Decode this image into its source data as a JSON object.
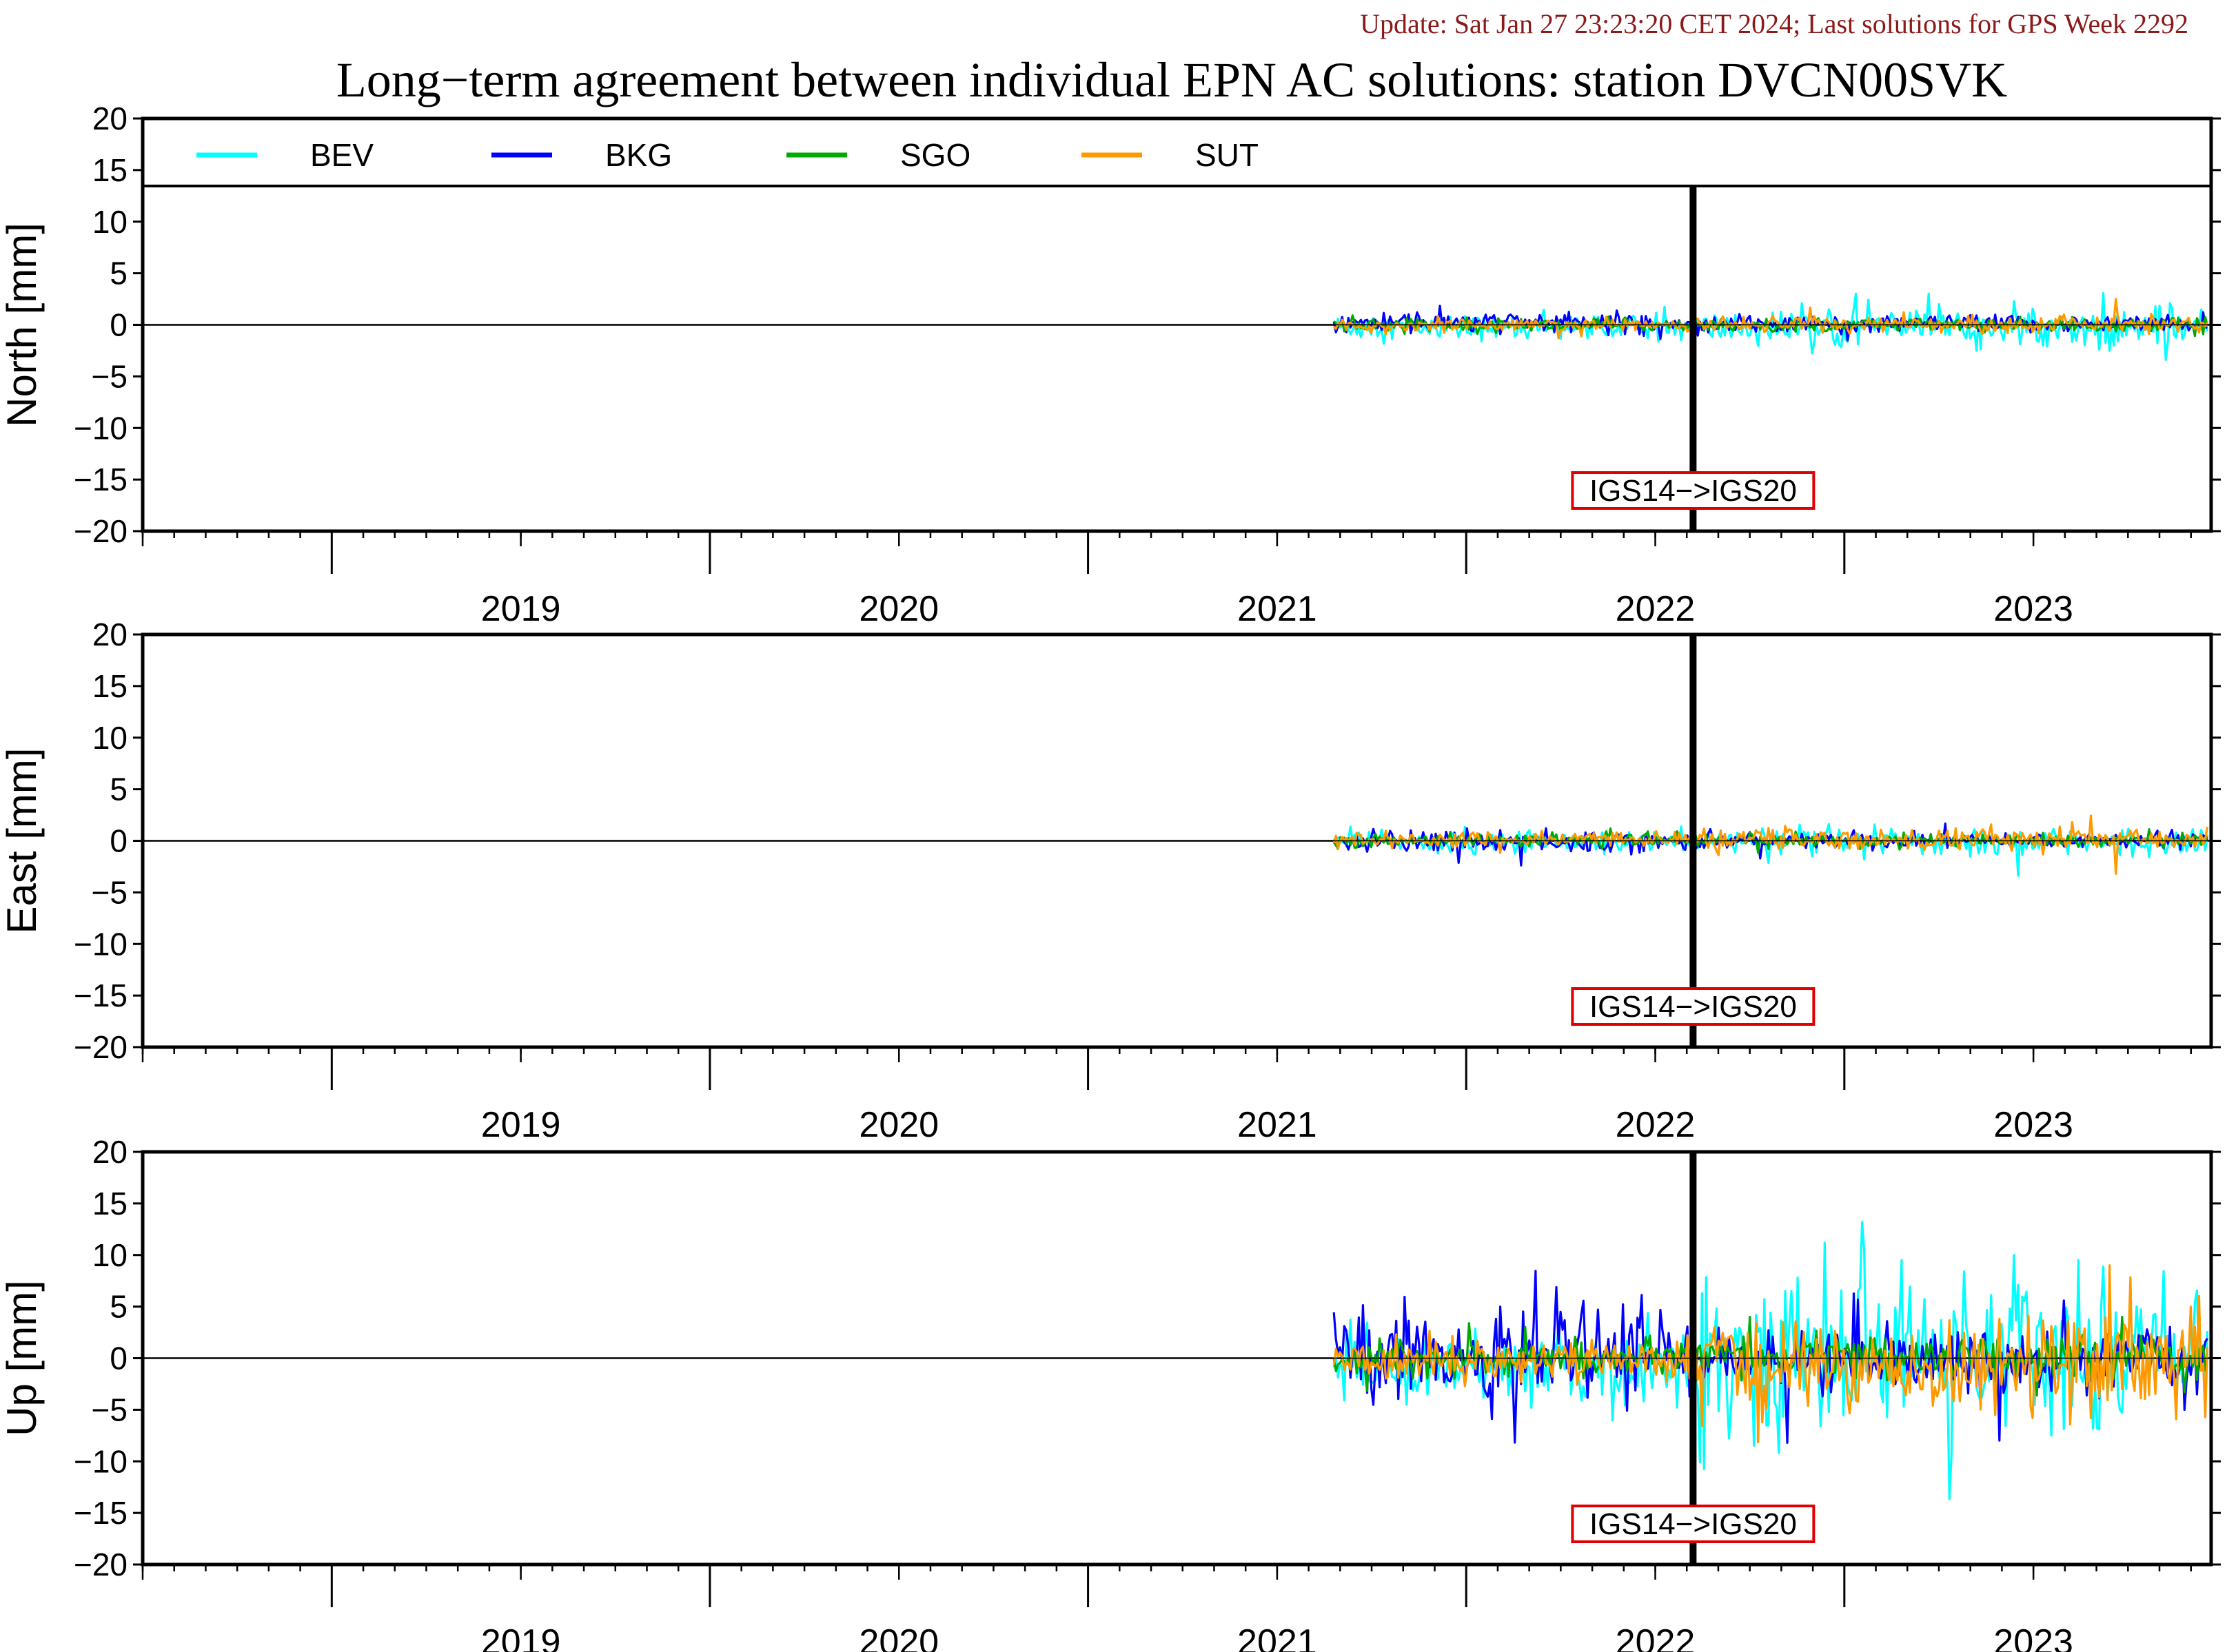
{
  "header": {
    "update": "Update: Sat Jan 27 23:23:20 CET 2024; Last solutions for GPS Week 2292",
    "title": "Long−term agreement between individual EPN AC solutions: station DVCN00SVK"
  },
  "chart_data": {
    "type": "line",
    "x_unit": "year",
    "xlim": [
      2018.5,
      2023.97
    ],
    "year_ticks": [
      "2019",
      "2020",
      "2021",
      "2022",
      "2023"
    ],
    "ylim": [
      -20,
      20
    ],
    "y_ticks": [
      "20",
      "15",
      "10",
      "5",
      "0",
      "−05",
      "−10",
      "−15",
      "−20"
    ],
    "y_tick_values": [
      20,
      15,
      10,
      5,
      0,
      -5,
      -10,
      -15,
      -20
    ],
    "y_tick_text": [
      "20",
      "15",
      "10",
      "5",
      "0",
      "−5",
      "−10",
      "−15",
      "−20"
    ],
    "event": {
      "label": "IGS14−>IGS20",
      "x": 2022.6
    },
    "legend": [
      {
        "name": "BEV",
        "color": "#00ffff"
      },
      {
        "name": "BKG",
        "color": "#0000ff"
      },
      {
        "name": "SGO",
        "color": "#00aa00"
      },
      {
        "name": "SUT",
        "color": "#ff9900"
      }
    ],
    "data_start": 2021.65,
    "data_end": 2023.96,
    "panels": [
      {
        "ylabel": "North [mm]",
        "series": {
          "BEV": {
            "pre_spread": 0.6,
            "pre_bias": -0.5,
            "post_spread": 0.8,
            "post_bias": -0.6,
            "peaks": [
              [
                2023.25,
                2.0
              ],
              [
                2023.85,
                -3.4
              ],
              [
                2023.35,
                -2.5
              ]
            ]
          },
          "BKG": {
            "pre_spread": 0.5,
            "pre_bias": 0.4,
            "post_spread": 0.4,
            "post_bias": 0.2,
            "peaks": [
              [
                2021.87,
                1.2
              ]
            ]
          },
          "SGO": {
            "pre_spread": 0.3,
            "pre_bias": 0.0,
            "post_spread": 0.3,
            "post_bias": 0.0,
            "peaks": []
          },
          "SUT": {
            "pre_spread": 0.3,
            "pre_bias": 0.0,
            "post_spread": 0.35,
            "post_bias": 0.1,
            "peaks": [
              [
                2023.72,
                2.5
              ]
            ]
          }
        }
      },
      {
        "ylabel": "East [mm]",
        "series": {
          "BEV": {
            "pre_spread": 0.5,
            "pre_bias": -0.2,
            "post_spread": 0.6,
            "post_bias": -0.2,
            "peaks": [
              [
                2023.05,
                -1.8
              ]
            ]
          },
          "BKG": {
            "pre_spread": 0.5,
            "pre_bias": -0.1,
            "post_spread": 0.4,
            "post_bias": 0.0,
            "peaks": []
          },
          "SGO": {
            "pre_spread": 0.3,
            "pre_bias": 0.1,
            "post_spread": 0.3,
            "post_bias": 0.1,
            "peaks": []
          },
          "SUT": {
            "pre_spread": 0.35,
            "pre_bias": 0.3,
            "post_spread": 0.5,
            "post_bias": 0.3,
            "peaks": [
              [
                2023.72,
                -3.2
              ],
              [
                2023.6,
                1.8
              ]
            ]
          }
        }
      },
      {
        "ylabel": "Up [mm]",
        "series": {
          "BEV": {
            "pre_spread": 1.8,
            "pre_bias": -1.8,
            "post_spread": 3.5,
            "post_bias": 1.0,
            "peaks": [
              [
                2022.95,
                11.2
              ],
              [
                2023.05,
                10.5
              ],
              [
                2023.15,
                9.5
              ],
              [
                2023.45,
                10.0
              ],
              [
                2023.62,
                9.5
              ],
              [
                2022.8,
                -6.5
              ],
              [
                2023.55,
                -7.5
              ]
            ]
          },
          "BKG": {
            "pre_spread": 2.0,
            "pre_bias": 1.0,
            "post_spread": 1.6,
            "post_bias": -0.3,
            "peaks": [
              [
                2022.85,
                -8.2
              ],
              [
                2023.9,
                -5.0
              ]
            ]
          },
          "SGO": {
            "pre_spread": 0.8,
            "pre_bias": 0.0,
            "post_spread": 1.0,
            "post_bias": 0.2,
            "peaks": [
              [
                2022.75,
                4.0
              ]
            ]
          },
          "SUT": {
            "pre_spread": 1.0,
            "pre_bias": -0.3,
            "post_spread": 2.2,
            "post_bias": -1.2,
            "peaks": [
              [
                2023.7,
                9.0
              ],
              [
                2023.4,
                -5.5
              ],
              [
                2023.65,
                -5.8
              ]
            ]
          }
        }
      }
    ]
  }
}
